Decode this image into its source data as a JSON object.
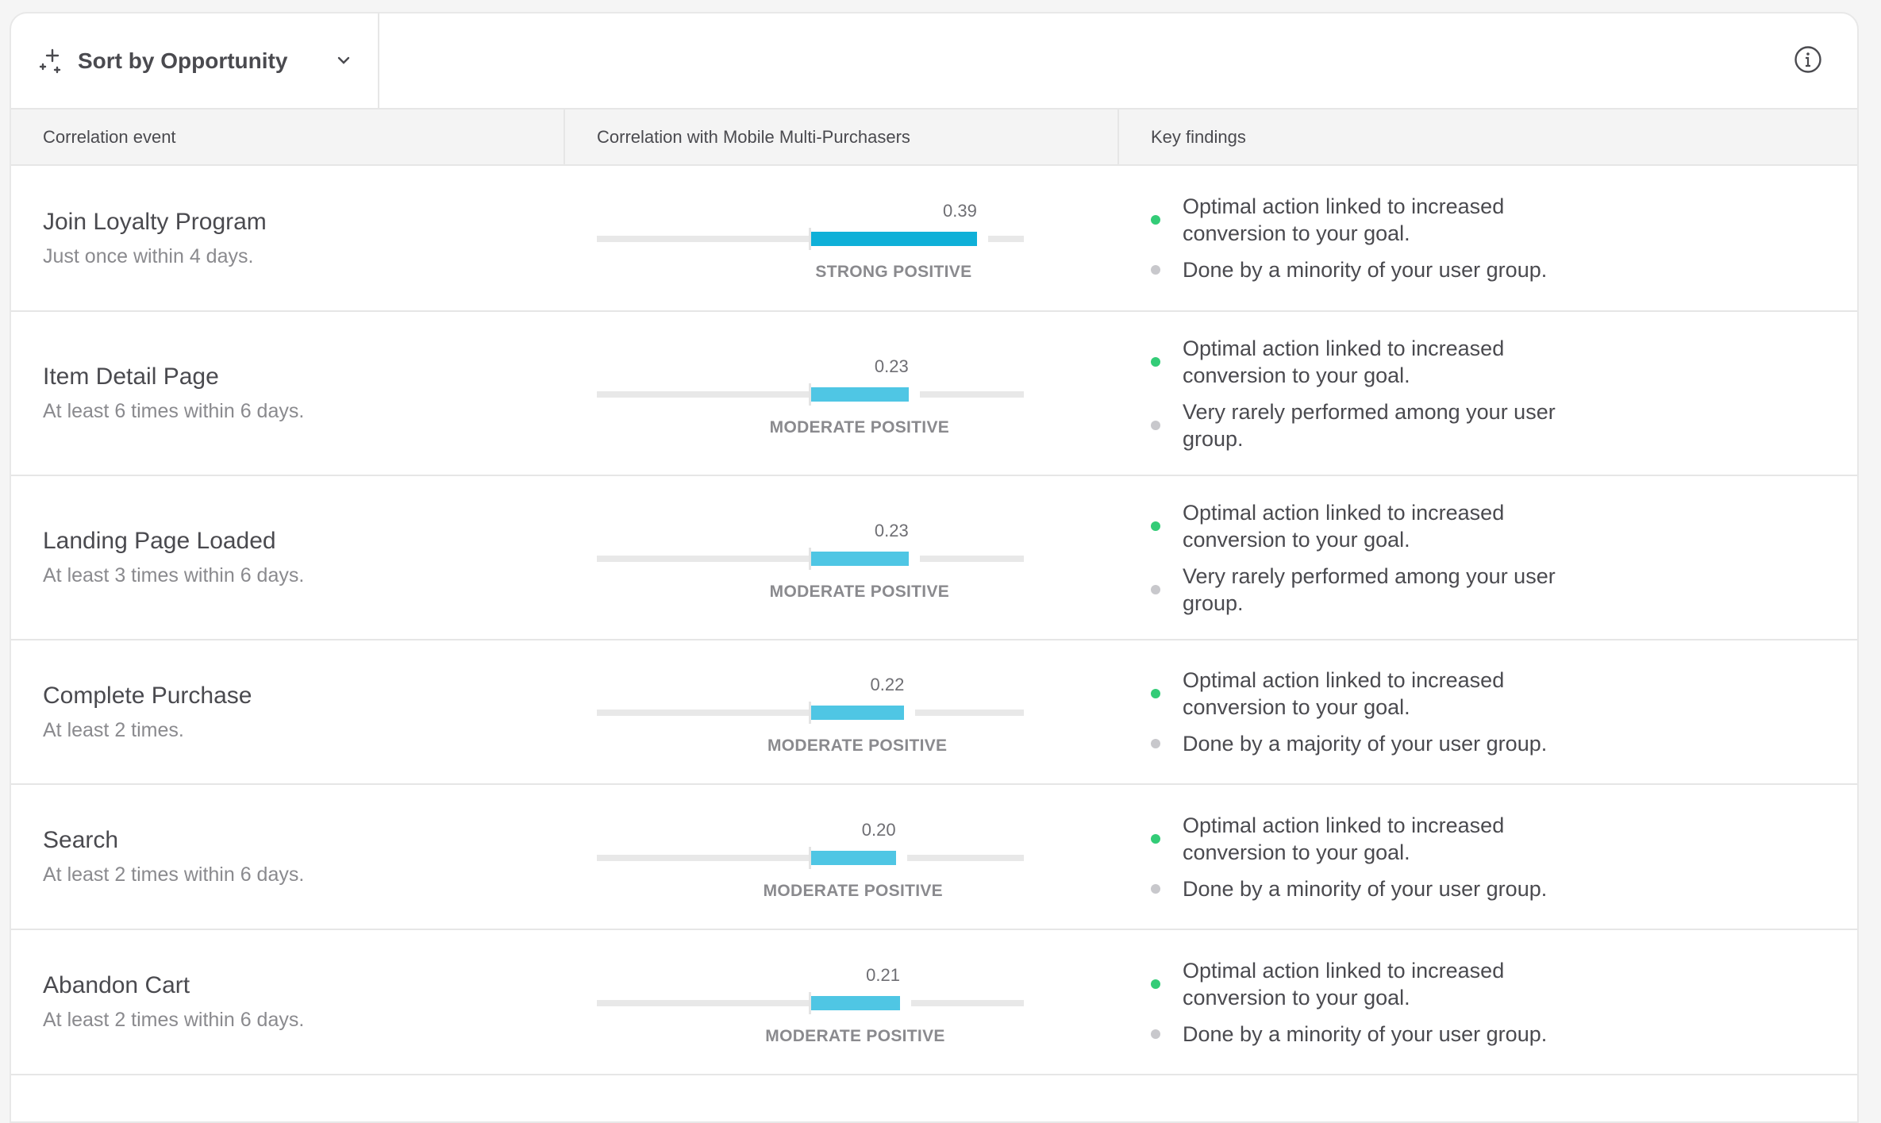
{
  "toolbar": {
    "sort_label": "Sort by Opportunity",
    "sort_icon": "sparkle-icon",
    "info_icon": "info-icon"
  },
  "columns": {
    "event": "Correlation event",
    "correlation": "Correlation with Mobile Multi-Purchasers",
    "findings": "Key findings"
  },
  "colors": {
    "strong": "#0fb0d8",
    "moderate": "#4fc6e4",
    "positive_dot": "#33cc77",
    "neutral_dot": "#c8c8cc"
  },
  "scale": {
    "min": -0.5,
    "max": 0.5
  },
  "rows": [
    {
      "name": "Join Loyalty Program",
      "subtitle": "Just once within 4 days.",
      "value": 0.39,
      "value_label": "0.39",
      "strength": "STRONG POSITIVE",
      "level": "strong",
      "findings": [
        {
          "text": "Optimal action linked to increased conversion to your goal.",
          "type": "positive"
        },
        {
          "text": "Done by a minority of your user group.",
          "type": "neutral"
        }
      ]
    },
    {
      "name": "Item Detail Page",
      "subtitle": "At least 6 times within 6 days.",
      "value": 0.23,
      "value_label": "0.23",
      "strength": "MODERATE POSITIVE",
      "level": "moderate",
      "findings": [
        {
          "text": "Optimal action linked to increased conversion to your goal.",
          "type": "positive"
        },
        {
          "text": "Very rarely performed among your user group.",
          "type": "neutral"
        }
      ]
    },
    {
      "name": "Landing Page Loaded",
      "subtitle": "At least 3 times within 6 days.",
      "value": 0.23,
      "value_label": "0.23",
      "strength": "MODERATE POSITIVE",
      "level": "moderate",
      "findings": [
        {
          "text": "Optimal action linked to increased conversion to your goal.",
          "type": "positive"
        },
        {
          "text": "Very rarely performed among your user group.",
          "type": "neutral"
        }
      ]
    },
    {
      "name": "Complete Purchase",
      "subtitle": "At least 2 times.",
      "value": 0.22,
      "value_label": "0.22",
      "strength": "MODERATE POSITIVE",
      "level": "moderate",
      "findings": [
        {
          "text": "Optimal action linked to increased conversion to your goal.",
          "type": "positive"
        },
        {
          "text": "Done by a majority of your user group.",
          "type": "neutral"
        }
      ]
    },
    {
      "name": "Search",
      "subtitle": "At least 2 times within 6 days.",
      "value": 0.2,
      "value_label": "0.20",
      "strength": "MODERATE POSITIVE",
      "level": "moderate",
      "findings": [
        {
          "text": "Optimal action linked to increased conversion to your goal.",
          "type": "positive"
        },
        {
          "text": "Done by a minority of your user group.",
          "type": "neutral"
        }
      ]
    },
    {
      "name": "Abandon Cart",
      "subtitle": "At least 2 times within 6 days.",
      "value": 0.21,
      "value_label": "0.21",
      "strength": "MODERATE POSITIVE",
      "level": "moderate",
      "findings": [
        {
          "text": "Optimal action linked to increased conversion to your goal.",
          "type": "positive"
        },
        {
          "text": "Done by a minority of your user group.",
          "type": "neutral"
        }
      ]
    }
  ]
}
